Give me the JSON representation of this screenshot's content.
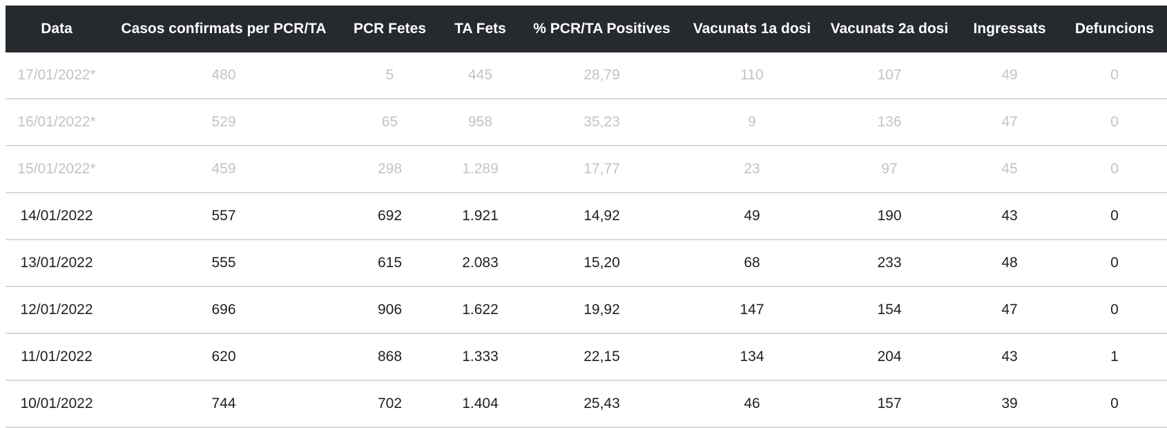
{
  "table": {
    "headers": [
      "Data",
      "Casos confirmats per PCR/TA",
      "PCR Fetes",
      "TA Fets",
      "% PCR/TA Positives",
      "Vacunats 1a dosi",
      "Vacunats 2a dosi",
      "Ingressats",
      "Defuncions"
    ],
    "rows": [
      {
        "provisional": true,
        "cells": [
          "17/01/2022*",
          "480",
          "5",
          "445",
          "28,79",
          "110",
          "107",
          "49",
          "0"
        ]
      },
      {
        "provisional": true,
        "cells": [
          "16/01/2022*",
          "529",
          "65",
          "958",
          "35,23",
          "9",
          "136",
          "47",
          "0"
        ]
      },
      {
        "provisional": true,
        "cells": [
          "15/01/2022*",
          "459",
          "298",
          "1.289",
          "17,77",
          "23",
          "97",
          "45",
          "0"
        ]
      },
      {
        "provisional": false,
        "cells": [
          "14/01/2022",
          "557",
          "692",
          "1.921",
          "14,92",
          "49",
          "190",
          "43",
          "0"
        ]
      },
      {
        "provisional": false,
        "cells": [
          "13/01/2022",
          "555",
          "615",
          "2.083",
          "15,20",
          "68",
          "233",
          "48",
          "0"
        ]
      },
      {
        "provisional": false,
        "cells": [
          "12/01/2022",
          "696",
          "906",
          "1.622",
          "19,92",
          "147",
          "154",
          "47",
          "0"
        ]
      },
      {
        "provisional": false,
        "cells": [
          "11/01/2022",
          "620",
          "868",
          "1.333",
          "22,15",
          "134",
          "204",
          "43",
          "1"
        ]
      },
      {
        "provisional": false,
        "cells": [
          "10/01/2022",
          "744",
          "702",
          "1.404",
          "25,43",
          "46",
          "157",
          "39",
          "0"
        ]
      }
    ]
  },
  "colors": {
    "header_background": "#262a2f",
    "header_text": "#ffffff",
    "provisional_text": "#c3c3c3",
    "regular_text": "#1f1f1f",
    "row_divider": "#d9d9d9"
  }
}
